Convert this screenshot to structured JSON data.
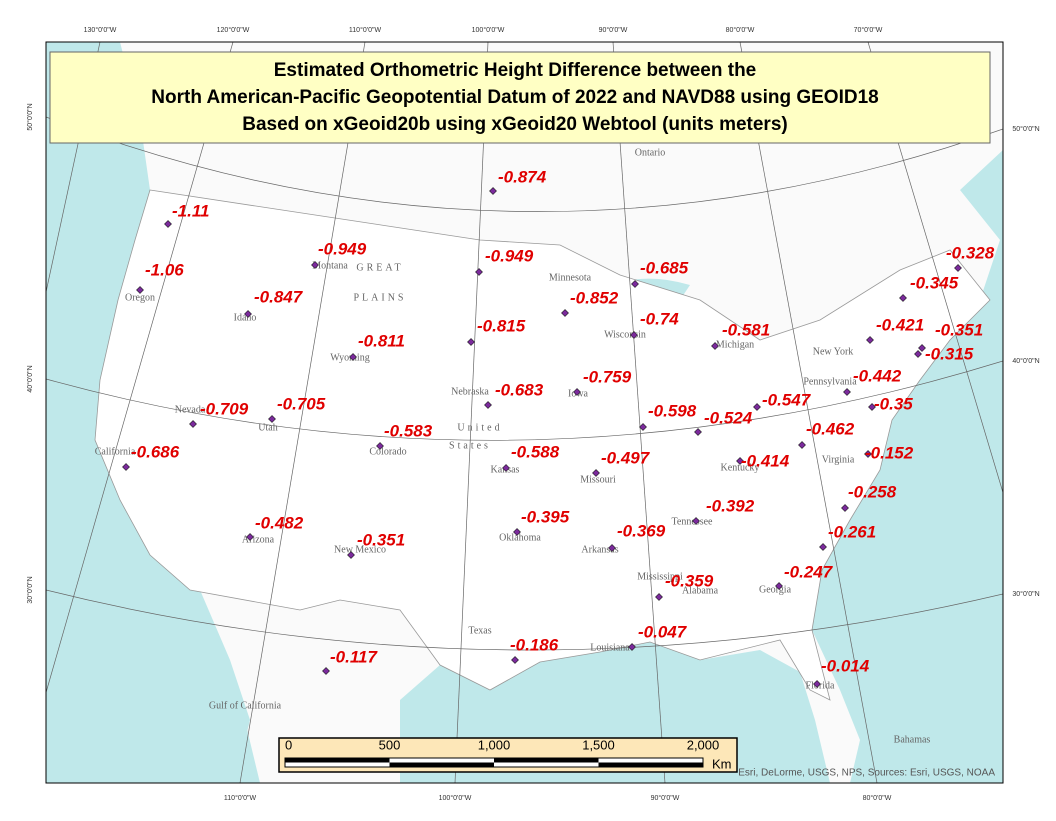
{
  "title": {
    "lines": [
      "Estimated Orthometric Height Difference between the",
      "North American-Pacific Geopotential Datum of 2022 and NAVD88 using GEOID18",
      "Based on xGeoid20b using xGeoid20 Webtool (units meters)"
    ]
  },
  "graticule": {
    "top": [
      "130°0'0\"W",
      "120°0'0\"W",
      "110°0'0\"W",
      "100°0'0\"W",
      "90°0'0\"W",
      "80°0'0\"W",
      "70°0'0\"W"
    ],
    "bottom": [
      "110°0'0\"W",
      "100°0'0\"W",
      "90°0'0\"W",
      "80°0'0\"W"
    ],
    "left": [
      "50°0'0\"N",
      "40°0'0\"N",
      "30°0'0\"N"
    ],
    "right": [
      "50°0'0\"N",
      "40°0'0\"N",
      "30°0'0\"N"
    ]
  },
  "points": [
    "-0.874",
    "-1.11",
    "-0.949",
    "-0.949",
    "-0.685",
    "-0.328",
    "-1.06",
    "-0.847",
    "-0.852",
    "-0.345",
    "-0.815",
    "-0.74",
    "-0.581",
    "-0.421",
    "-0.351",
    "-0.811",
    "-0.315",
    "-0.683",
    "-0.759",
    "-0.442",
    "-0.709",
    "-0.705",
    "-0.598",
    "-0.524",
    "-0.547",
    "-0.35",
    "-0.583",
    "-0.462",
    "-0.686",
    "-0.588",
    "-0.497",
    "-0.414",
    "-0.152",
    "-0.392",
    "-0.258",
    "-0.482",
    "-0.395",
    "-0.369",
    "-0.351",
    "-0.261",
    "-0.359",
    "-0.247",
    "-0.186",
    "-0.047",
    "-0.117",
    "-0.014"
  ],
  "places": [
    "Ontario",
    "Oregon",
    "Idaho",
    "Montana",
    "Wyoming",
    "Nevada",
    "Utah",
    "Colorado",
    "California",
    "Arizona",
    "New Mexico",
    "Nebraska",
    "Kansas",
    "Oklahoma",
    "Texas",
    "Iowa",
    "Missouri",
    "Arkansas",
    "Louisiana",
    "Mississippi",
    "Alabama",
    "Georgia",
    "Florida",
    "Tennessee",
    "Kentucky",
    "Michigan",
    "Wisconsin",
    "Minnesota",
    "Virginia",
    "New York",
    "Pennsylvania",
    "United",
    "States",
    "GREAT",
    "PLAINS",
    "Bahamas",
    "Gulf of California"
  ],
  "scale_bar": {
    "ticks": [
      "0",
      "500",
      "1,000",
      "1,500",
      "2,000"
    ],
    "unit": "Km"
  },
  "attribution": "Esri, DeLorme, USGS, NPS, Sources: Esri, USGS, NOAA"
}
